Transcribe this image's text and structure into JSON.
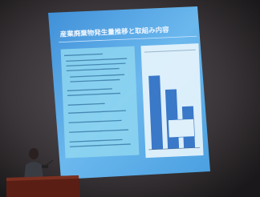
{
  "slide": {
    "title": "産業廃棄物発生量推移と取組み内容"
  }
}
